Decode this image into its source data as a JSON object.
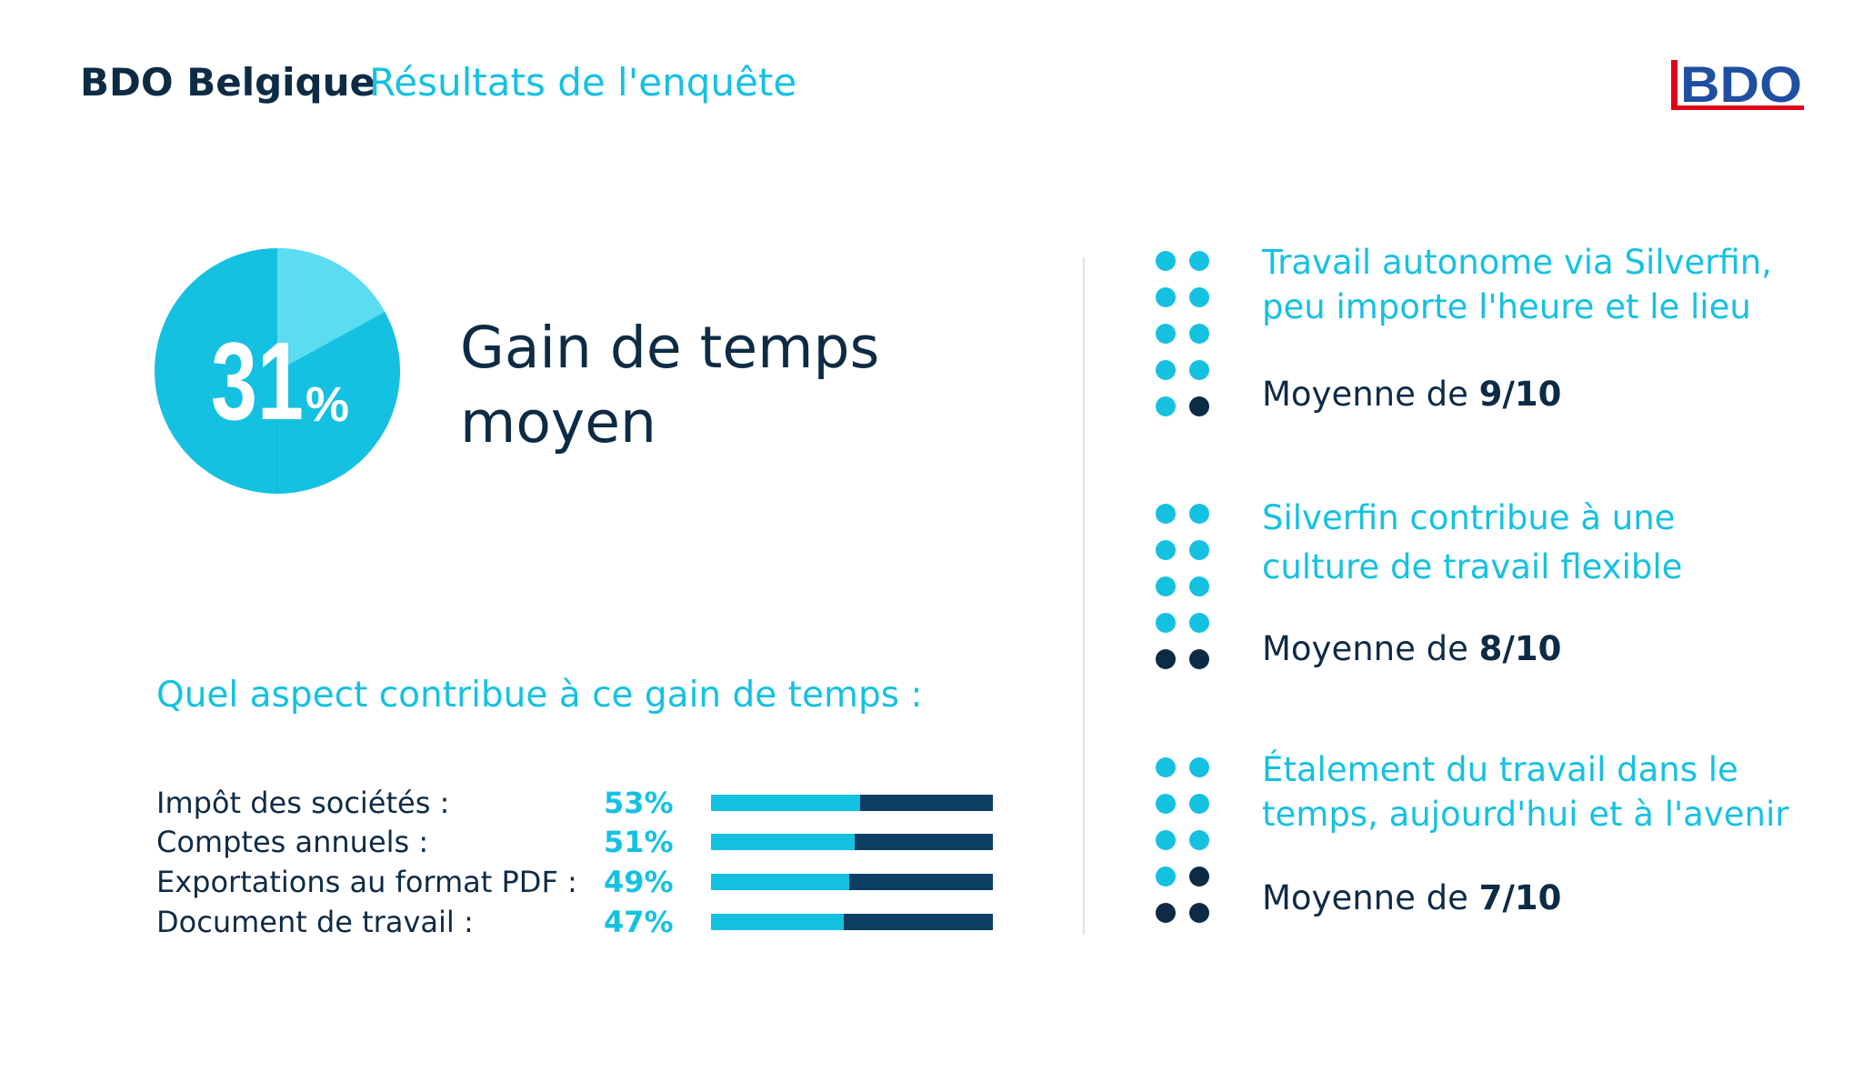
{
  "header": {
    "brand": "BDO Belgique",
    "subtitle": "Résultats de l'enquête",
    "logo_text": "BDO"
  },
  "gain": {
    "value_number": "31",
    "value_unit": "%",
    "title_line1": "Gain de temps",
    "title_line2": "moyen",
    "fraction": 0.31
  },
  "aspects": {
    "question": "Quel aspect contribue à ce gain de temps :",
    "items": [
      {
        "label": "Impôt des sociétés :",
        "percent_label": "53%",
        "percent": 53
      },
      {
        "label": "Comptes annuels :",
        "percent_label": "51%",
        "percent": 51
      },
      {
        "label": "Exportations au format PDF :",
        "percent_label": "49%",
        "percent": 49
      },
      {
        "label": "Document de travail :",
        "percent_label": "47%",
        "percent": 47
      }
    ]
  },
  "ratings": [
    {
      "line1": "Travail autonome via Silverfin,",
      "line2": "peu importe l'heure et le lieu",
      "avg_prefix": "Moyenne de ",
      "avg_value": "9/10",
      "score": 9
    },
    {
      "line1": "Silverfin contribue à une",
      "line2": "culture de travail flexible",
      "avg_prefix": "Moyenne de ",
      "avg_value": "8/10",
      "score": 8
    },
    {
      "line1": "Étalement du travail dans le",
      "line2": "temps, aujourd'hui et à l'avenir",
      "avg_prefix": "Moyenne de ",
      "avg_value": "7/10",
      "score": 7
    }
  ],
  "colors": {
    "navy": "#0e2b45",
    "cyan": "#15c1e1",
    "cyan_light": "#5cdcf1",
    "dark_blue": "#0c3f63",
    "bdo_red": "#e2001a",
    "bdo_blue": "#1f4fa1"
  }
}
